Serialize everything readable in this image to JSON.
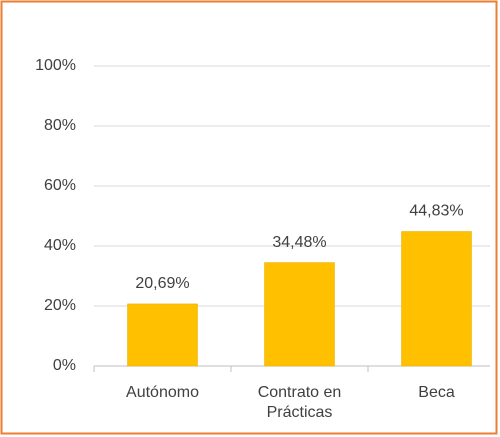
{
  "chart_data": {
    "type": "bar",
    "categories": [
      "Autónomo",
      "Contrato en Prácticas",
      "Beca"
    ],
    "values": [
      20.69,
      34.48,
      44.83
    ],
    "value_labels": [
      "20,69%",
      "34,48%",
      "44,83%"
    ],
    "color": "#ffc000",
    "ylim": [
      0,
      100
    ],
    "yticks": [
      {
        "value": 0,
        "label": "0%"
      },
      {
        "value": 20,
        "label": "20%"
      },
      {
        "value": 40,
        "label": "40%"
      },
      {
        "value": 60,
        "label": "60%"
      },
      {
        "value": 80,
        "label": "80%"
      },
      {
        "value": 100,
        "label": "100%"
      }
    ],
    "grid": true
  }
}
